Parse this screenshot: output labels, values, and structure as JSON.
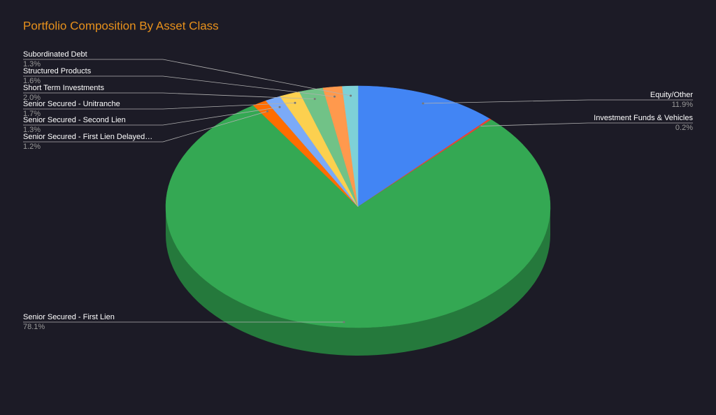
{
  "chart_data": {
    "type": "pie3d",
    "title": "Portfolio Composition By Asset Class",
    "categories": [
      "Equity/Other",
      "Investment Funds & Vehicles",
      "Senior Secured - First Lien",
      "Senior Secured - First Lien Delayed…",
      "Senior Secured - Second Lien",
      "Senior Secured - Unitranche",
      "Short Term Investments",
      "Structured Products",
      "Subordinated Debt"
    ],
    "values": [
      11.9,
      0.2,
      78.1,
      1.2,
      1.3,
      1.7,
      2.0,
      1.6,
      1.3
    ],
    "value_labels": [
      "11.9%",
      "0.2%",
      "78.1%",
      "1.2%",
      "1.3%",
      "1.7%",
      "2.0%",
      "1.6%",
      "1.3%"
    ],
    "colors": [
      "#4285f4",
      "#ea4335",
      "#34a853",
      "#ff6d01",
      "#7baaf7",
      "#fcd04f",
      "#71c287",
      "#ff994d",
      "#7ed1d7"
    ]
  }
}
